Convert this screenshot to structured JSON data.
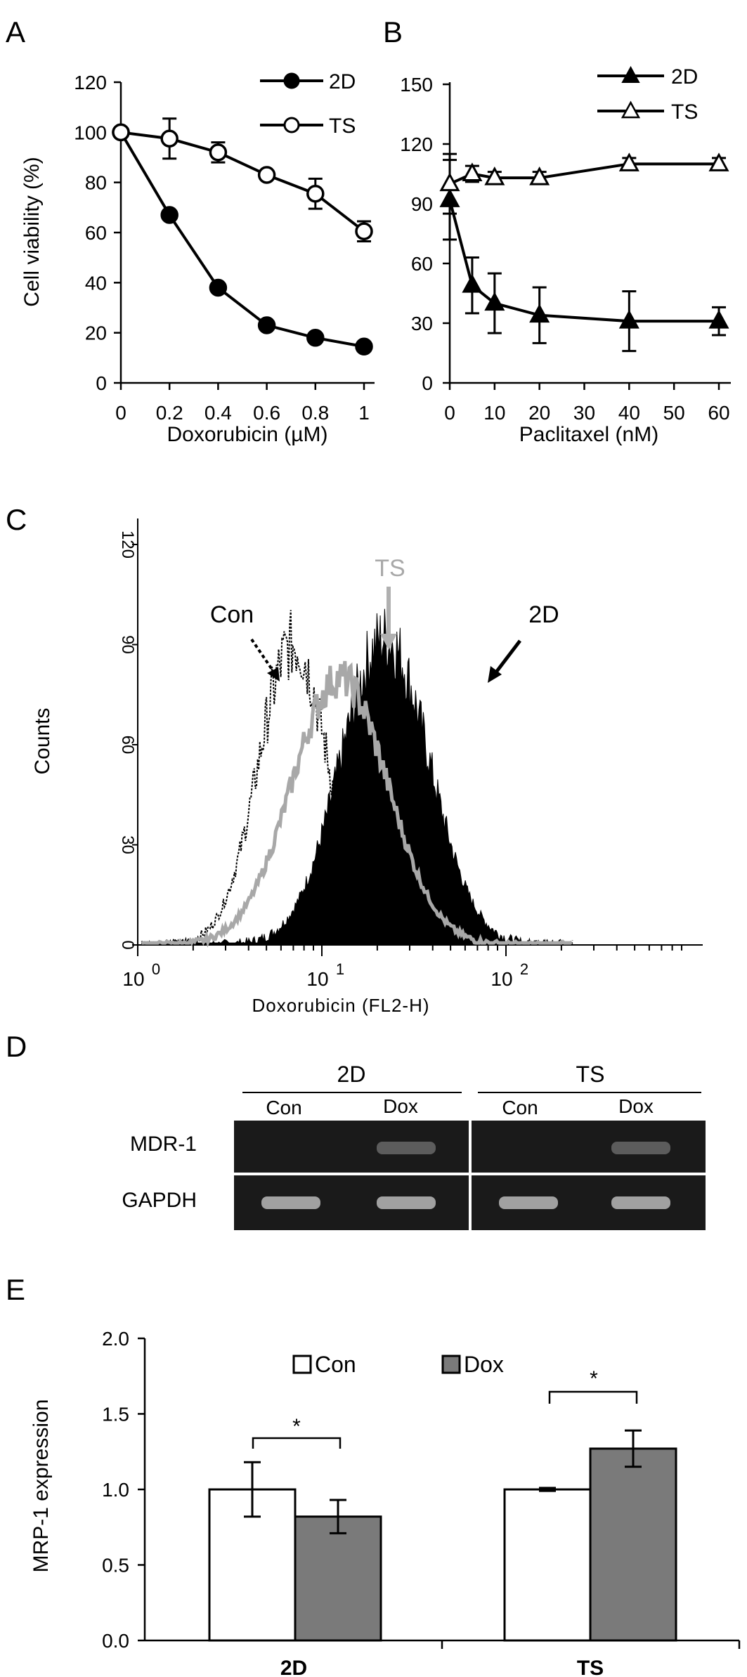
{
  "chart_data": [
    {
      "panel": "A",
      "type": "line",
      "xlabel": "Doxorubicin (µM)",
      "ylabel": "Cell viability (%)",
      "xlim": [
        0,
        1
      ],
      "ylim": [
        0,
        120
      ],
      "xticks": [
        "0",
        "0.2",
        "0.4",
        "0.6",
        "0.8",
        "1"
      ],
      "yticks": [
        "0",
        "20",
        "40",
        "60",
        "80",
        "100",
        "120"
      ],
      "x": [
        0,
        0.2,
        0.4,
        0.6,
        0.8,
        1
      ],
      "legend_position": "top-right",
      "series": [
        {
          "name": "2D",
          "marker": "filled-circle",
          "values": [
            100,
            67,
            38,
            23,
            18,
            14.5
          ],
          "errors": [
            0,
            0,
            0,
            0,
            0,
            0
          ]
        },
        {
          "name": "TS",
          "marker": "open-circle",
          "values": [
            100,
            97.5,
            92,
            83,
            75.5,
            60.5
          ],
          "errors": [
            0,
            8,
            4,
            0,
            6,
            4
          ]
        }
      ]
    },
    {
      "panel": "B",
      "type": "line",
      "xlabel": "Paclitaxel (nM)",
      "ylabel": "",
      "xlim": [
        0,
        60
      ],
      "ylim": [
        0,
        150
      ],
      "xticks": [
        "0",
        "10",
        "20",
        "30",
        "40",
        "50",
        "60"
      ],
      "yticks": [
        "0",
        "30",
        "60",
        "90",
        "120",
        "150"
      ],
      "x": [
        0,
        5,
        10,
        20,
        40,
        60
      ],
      "legend_position": "top-right",
      "series": [
        {
          "name": "2D",
          "marker": "filled-triangle",
          "values": [
            92,
            49,
            40,
            34,
            31,
            31
          ],
          "errors": [
            20,
            14,
            15,
            14,
            15,
            7
          ]
        },
        {
          "name": "TS",
          "marker": "open-triangle",
          "values": [
            100,
            105,
            103,
            103,
            110,
            110
          ],
          "errors": [
            15,
            4,
            3,
            3,
            3,
            3
          ]
        }
      ]
    },
    {
      "panel": "C",
      "type": "area",
      "xlabel": "Doxorubicin  (FL2-H)",
      "ylabel": "Counts",
      "x_scale": "log",
      "xlim": [
        1,
        1000
      ],
      "ylim": [
        0,
        120
      ],
      "xticks_base": "10",
      "xticks_exp": [
        "0",
        "1",
        "2"
      ],
      "yticks": [
        "0",
        "30",
        "60",
        "90",
        "120"
      ],
      "annotations": [
        "Con",
        "TS",
        "2D"
      ],
      "series": [
        {
          "name": "Con",
          "style": "dotted-outline",
          "peak_x": 7,
          "peak_count": 90,
          "log_sigma": 0.19
        },
        {
          "name": "TS",
          "style": "gray-outline",
          "peak_x": 12.5,
          "peak_count": 80,
          "log_sigma": 0.26
        },
        {
          "name": "2D",
          "style": "black-filled",
          "peak_x": 22,
          "peak_count": 92,
          "log_sigma": 0.24
        }
      ]
    },
    {
      "panel": "D",
      "type": "table",
      "groups": [
        "2D",
        "TS"
      ],
      "lanes": [
        "Con",
        "Dox",
        "Con",
        "Dox"
      ],
      "rows": [
        "MDR-1",
        "GAPDH"
      ],
      "band_intensity": {
        "MDR-1": [
          0,
          0.35,
          0,
          0.35
        ],
        "GAPDH": [
          0.8,
          0.8,
          0.8,
          0.8
        ]
      }
    },
    {
      "panel": "E",
      "type": "bar",
      "categories": [
        "2D",
        "TS"
      ],
      "ylabel": "MRP-1 expression",
      "ylim": [
        0,
        2.0
      ],
      "yticks": [
        "0.0",
        "0.5",
        "1.0",
        "1.5",
        "2.0"
      ],
      "legend_position": "top-center",
      "series": [
        {
          "name": "Con",
          "color": "#ffffff",
          "values": [
            1.0,
            1.0
          ],
          "errors": [
            0.18,
            0.01
          ]
        },
        {
          "name": "Dox",
          "color": "#7a7a7a",
          "values": [
            0.82,
            1.27
          ],
          "errors": [
            0.11,
            0.12
          ]
        }
      ],
      "significance": [
        "*",
        "*"
      ]
    }
  ],
  "panel_labels": [
    "A",
    "B",
    "C",
    "D",
    "E"
  ]
}
